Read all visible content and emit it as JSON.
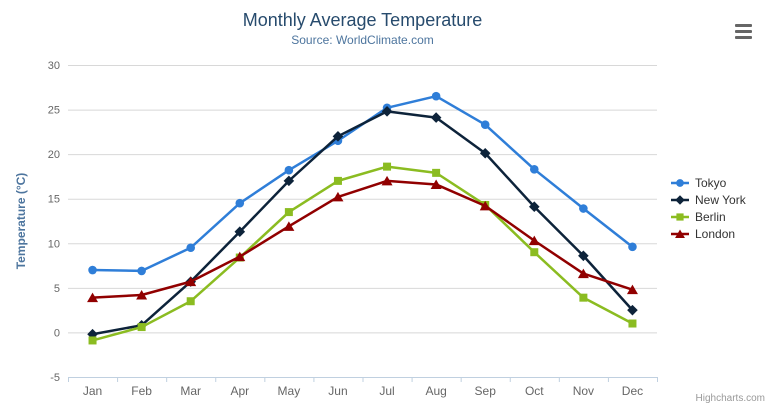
{
  "header": {
    "title": "Monthly Average Temperature",
    "subtitle": "Source: WorldClimate.com"
  },
  "export_menu": {
    "icon": "hamburger-menu-icon"
  },
  "credits": {
    "label": "Highcharts.com"
  },
  "chart_data": {
    "type": "line",
    "title": "Monthly Average Temperature",
    "subtitle": "Source: WorldClimate.com",
    "xlabel": "",
    "ylabel": "Temperature (°C)",
    "categories": [
      "Jan",
      "Feb",
      "Mar",
      "Apr",
      "May",
      "Jun",
      "Jul",
      "Aug",
      "Sep",
      "Oct",
      "Nov",
      "Dec"
    ],
    "ylim": [
      -5,
      30
    ],
    "yticks": [
      -5,
      0,
      5,
      10,
      15,
      20,
      25,
      30
    ],
    "grid": true,
    "legend_position": "right",
    "series": [
      {
        "name": "Tokyo",
        "color": "#2f7ed8",
        "marker": "circle",
        "values": [
          7.0,
          6.9,
          9.5,
          14.5,
          18.2,
          21.5,
          25.2,
          26.5,
          23.3,
          18.3,
          13.9,
          9.6
        ]
      },
      {
        "name": "New York",
        "color": "#0d233a",
        "marker": "diamond",
        "values": [
          -0.2,
          0.8,
          5.7,
          11.3,
          17.0,
          22.0,
          24.8,
          24.1,
          20.1,
          14.1,
          8.6,
          2.5
        ]
      },
      {
        "name": "Berlin",
        "color": "#8bbc21",
        "marker": "square",
        "values": [
          -0.9,
          0.6,
          3.5,
          8.4,
          13.5,
          17.0,
          18.6,
          17.9,
          14.3,
          9.0,
          3.9,
          1.0
        ]
      },
      {
        "name": "London",
        "color": "#910000",
        "marker": "triangle",
        "values": [
          3.9,
          4.2,
          5.7,
          8.5,
          11.9,
          15.2,
          17.0,
          16.6,
          14.2,
          10.3,
          6.6,
          4.8
        ]
      }
    ]
  },
  "colors": {
    "title": "#274b6d",
    "subtitle": "#4d759e",
    "axis_title": "#4d759e",
    "axis_label": "#666666",
    "grid_line": "#d8d8d8",
    "axis_line": "#c0d0e0",
    "legend_text": "#333333",
    "credits_text": "#999999",
    "export_icon": "#666666"
  }
}
